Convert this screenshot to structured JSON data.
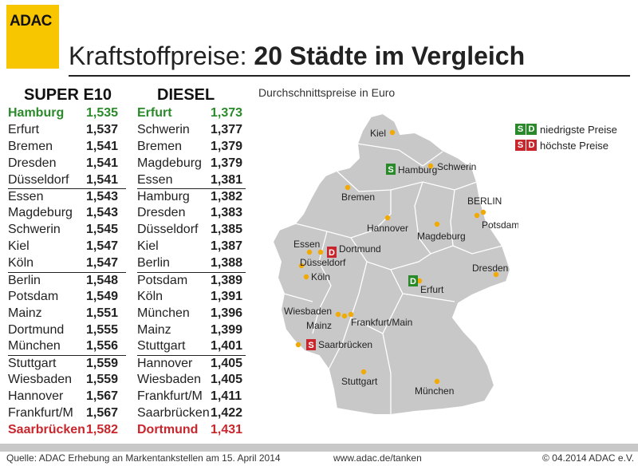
{
  "logo": "ADAC",
  "title": {
    "light": "Kraftstoffpreise: ",
    "bold": "20 Städte im Vergleich"
  },
  "subtitle": "Durchschnittspreise in Euro",
  "super": {
    "header": "SUPER E10",
    "rows": [
      {
        "city": "Hamburg",
        "value": "1,535",
        "style": "green"
      },
      {
        "city": "Erfurt",
        "value": "1,537"
      },
      {
        "city": "Bremen",
        "value": "1,541"
      },
      {
        "city": "Dresden",
        "value": "1,541"
      },
      {
        "city": "Düsseldorf",
        "value": "1,541"
      },
      {
        "city": "Essen",
        "value": "1,543",
        "sep": true
      },
      {
        "city": "Magdeburg",
        "value": "1,543"
      },
      {
        "city": "Schwerin",
        "value": "1,545"
      },
      {
        "city": "Kiel",
        "value": "1,547"
      },
      {
        "city": "Köln",
        "value": "1,547"
      },
      {
        "city": "Berlin",
        "value": "1,548",
        "sep": true
      },
      {
        "city": "Potsdam",
        "value": "1,549"
      },
      {
        "city": "Mainz",
        "value": "1,551"
      },
      {
        "city": "Dortmund",
        "value": "1,555"
      },
      {
        "city": "München",
        "value": "1,556"
      },
      {
        "city": "Stuttgart",
        "value": "1,559",
        "sep": true
      },
      {
        "city": "Wiesbaden",
        "value": "1,559"
      },
      {
        "city": "Hannover",
        "value": "1,567"
      },
      {
        "city": "Frankfurt/M",
        "value": "1,567"
      },
      {
        "city": "Saarbrücken",
        "value": "1,582",
        "style": "red"
      }
    ]
  },
  "diesel": {
    "header": "DIESEL",
    "rows": [
      {
        "city": "Erfurt",
        "value": "1,373",
        "style": "green"
      },
      {
        "city": "Schwerin",
        "value": "1,377"
      },
      {
        "city": "Bremen",
        "value": "1,379"
      },
      {
        "city": "Magdeburg",
        "value": "1,379"
      },
      {
        "city": "Essen",
        "value": "1,381"
      },
      {
        "city": "Hamburg",
        "value": "1,382",
        "sep": true
      },
      {
        "city": "Dresden",
        "value": "1,383"
      },
      {
        "city": "Düsseldorf",
        "value": "1,385"
      },
      {
        "city": "Kiel",
        "value": "1,387"
      },
      {
        "city": "Berlin",
        "value": "1,388"
      },
      {
        "city": "Potsdam",
        "value": "1,389",
        "sep": true
      },
      {
        "city": "Köln",
        "value": "1,391"
      },
      {
        "city": "München",
        "value": "1,396"
      },
      {
        "city": "Mainz",
        "value": "1,399"
      },
      {
        "city": "Stuttgart",
        "value": "1,401"
      },
      {
        "city": "Hannover",
        "value": "1,405",
        "sep": true
      },
      {
        "city": "Wiesbaden",
        "value": "1,405"
      },
      {
        "city": "Frankfurt/M",
        "value": "1,411"
      },
      {
        "city": "Saarbrücken",
        "value": "1,422"
      },
      {
        "city": "Dortmund",
        "value": "1,431",
        "style": "red"
      }
    ]
  },
  "legend": {
    "low": {
      "s": "S",
      "d": "D",
      "label": "niedrigste Preise"
    },
    "high": {
      "s": "S",
      "d": "D",
      "label": "höchste Preise"
    }
  },
  "map": {
    "land_color": "#c8c8c8",
    "dot_color": "#f2a900",
    "cities": [
      {
        "name": "Kiel"
      },
      {
        "name": "Hamburg",
        "badge": "S",
        "badge_color": "green"
      },
      {
        "name": "Schwerin"
      },
      {
        "name": "Bremen"
      },
      {
        "name": "BERLIN"
      },
      {
        "name": "Potsdam"
      },
      {
        "name": "Hannover"
      },
      {
        "name": "Magdeburg"
      },
      {
        "name": "Essen"
      },
      {
        "name": "Dortmund",
        "badge": "D",
        "badge_color": "red"
      },
      {
        "name": "Düsseldorf"
      },
      {
        "name": "Köln"
      },
      {
        "name": "Dresden"
      },
      {
        "name": "Erfurt",
        "badge": "D",
        "badge_color": "green"
      },
      {
        "name": "Wiesbaden"
      },
      {
        "name": "Mainz"
      },
      {
        "name": "Frankfurt/Main"
      },
      {
        "name": "Saarbrücken",
        "badge": "S",
        "badge_color": "red"
      },
      {
        "name": "Stuttgart"
      },
      {
        "name": "München"
      }
    ]
  },
  "footer": {
    "source": "Quelle: ADAC Erhebung an Markentankstellen am 15. April 2014",
    "url": "www.adac.de/tanken",
    "copyright": "© 04.2014  ADAC e.V."
  }
}
